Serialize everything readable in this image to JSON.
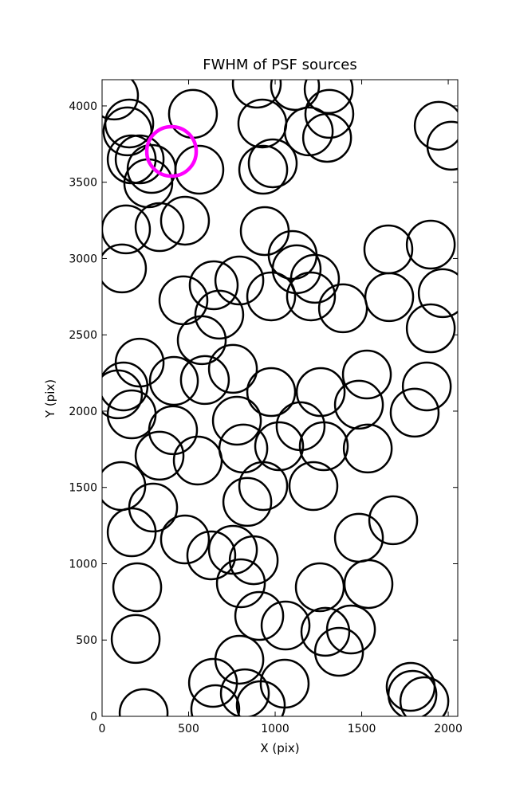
{
  "chart_data": {
    "type": "scatter",
    "title": "FWHM of PSF sources",
    "x_label": "X (pix)",
    "y_label": "Y (pix)",
    "xlim": [
      0,
      2055
    ],
    "ylim": [
      0,
      4172
    ],
    "xticks": [
      0,
      500,
      1000,
      1500,
      2000
    ],
    "yticks": [
      0,
      500,
      1000,
      1500,
      2000,
      2500,
      3000,
      3500,
      4000
    ],
    "grid": false,
    "color": "#000000",
    "x": [
      69,
      157,
      147,
      525,
      894,
      1115,
      1309,
      1313,
      1194,
      1300,
      926,
      986,
      931,
      1945,
      2018,
      171,
      217,
      286,
      267,
      562,
      138,
      332,
      479,
      115,
      940,
      1101,
      1124,
      1230,
      1207,
      1392,
      1654,
      1899,
      1968,
      1899,
      1659,
      793,
      645,
      977,
      677,
      470,
      576,
      217,
      124,
      92,
      171,
      415,
      594,
      756,
      977,
      1263,
      1530,
      1484,
      1876,
      1806,
      779,
      1147,
      1281,
      1023,
      816,
      410,
      332,
      553,
      111,
      295,
      171,
      479,
      931,
      1221,
      1535,
      839,
      1484,
      1682,
      756,
      631,
      876,
      802,
      1258,
      1539,
      203,
      908,
      1060,
      1290,
      1438,
      1369,
      194,
      641,
      793,
      825,
      1055,
      917,
      654,
      240,
      1783,
      1793,
      1862
    ],
    "y": [
      4068,
      3885,
      3833,
      3948,
      4146,
      4131,
      4110,
      3948,
      3833,
      3791,
      3885,
      3624,
      3582,
      3870,
      3739,
      3650,
      3650,
      3587,
      3493,
      3582,
      3191,
      3206,
      3248,
      2935,
      3180,
      3023,
      2930,
      2867,
      2752,
      2674,
      3060,
      3091,
      2773,
      2543,
      2747,
      2856,
      2825,
      2752,
      2632,
      2726,
      2465,
      2318,
      2162,
      2110,
      1979,
      2198,
      2204,
      2277,
      2125,
      2125,
      2240,
      2042,
      2162,
      1990,
      1937,
      1901,
      1770,
      1770,
      1755,
      1875,
      1708,
      1676,
      1509,
      1368,
      1206,
      1159,
      1509,
      1509,
      1755,
      1405,
      1170,
      1285,
      1091,
      1055,
      1023,
      872,
      846,
      867,
      846,
      658,
      595,
      554,
      569,
      423,
      507,
      219,
      371,
      151,
      214,
      73,
      47,
      21,
      193,
      141,
      99
    ],
    "highlight": {
      "x": 401,
      "y": 3702,
      "color": "#ff00ff"
    }
  }
}
